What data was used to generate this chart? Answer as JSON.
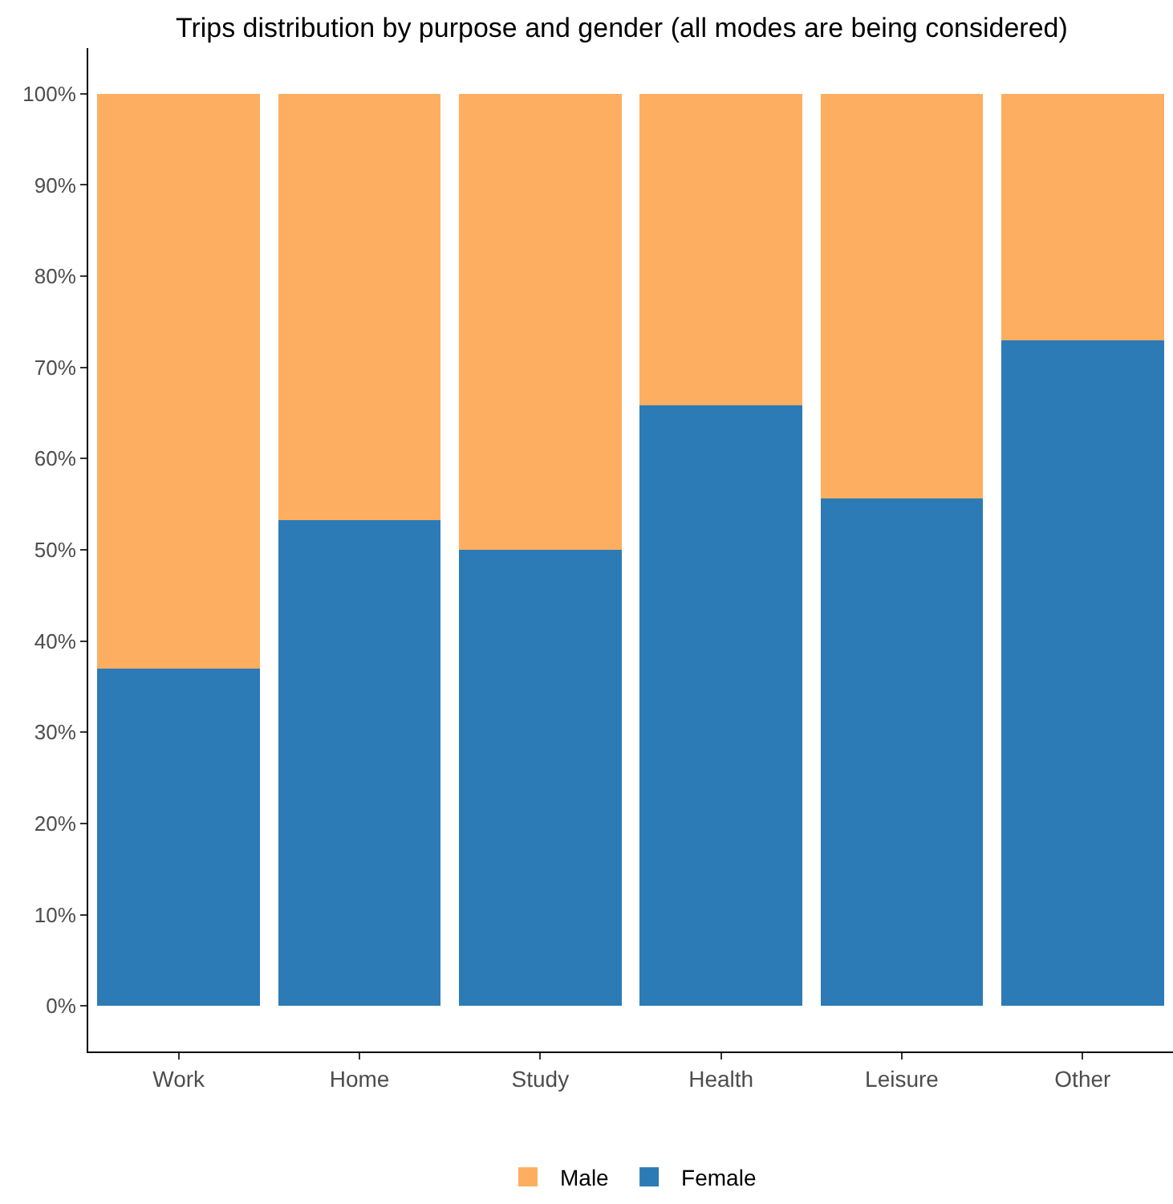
{
  "chart_data": {
    "type": "bar",
    "title": "Trips distribution by purpose and gender (all modes are being considered)",
    "categories": [
      "Work",
      "Home",
      "Study",
      "Health",
      "Leisure",
      "Other"
    ],
    "stacked": true,
    "series": [
      {
        "name": "Female",
        "color": "#2c7bb6",
        "values": [
          37,
          53.3,
          50,
          65.8,
          55.6,
          73
        ]
      },
      {
        "name": "Male",
        "color": "#fdae61",
        "values": [
          63,
          46.7,
          50,
          34.2,
          44.4,
          27
        ]
      }
    ],
    "ylim": [
      -5,
      105
    ],
    "yticks": [
      {
        "value": 0,
        "label": "0%"
      },
      {
        "value": 10,
        "label": "10%"
      },
      {
        "value": 20,
        "label": "20%"
      },
      {
        "value": 30,
        "label": "30%"
      },
      {
        "value": 40,
        "label": "40%"
      },
      {
        "value": 50,
        "label": "50%"
      },
      {
        "value": 60,
        "label": "60%"
      },
      {
        "value": 70,
        "label": "70%"
      },
      {
        "value": 80,
        "label": "80%"
      },
      {
        "value": 90,
        "label": "90%"
      },
      {
        "value": 100,
        "label": "100%"
      }
    ],
    "grid": false,
    "legend": "bottom"
  }
}
